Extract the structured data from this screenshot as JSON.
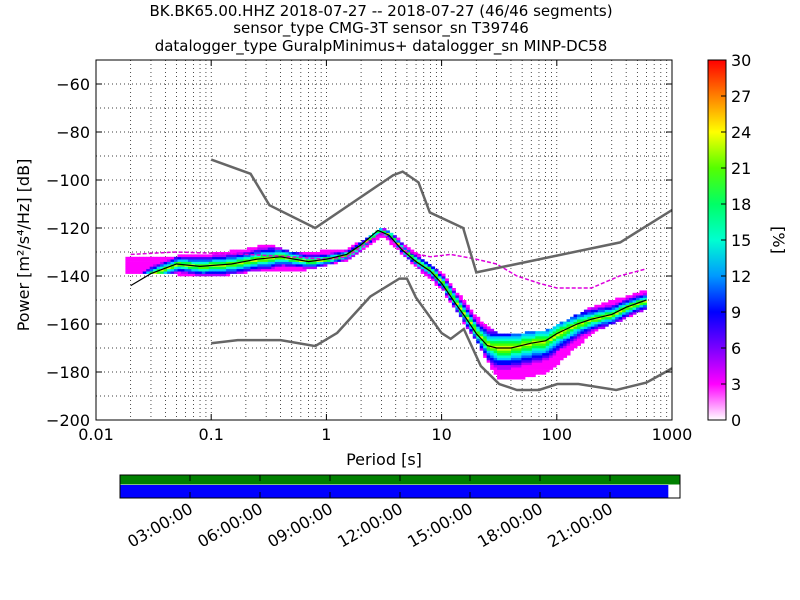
{
  "chart_data": {
    "type": "heatmap",
    "title_lines": [
      "BK.BK65.00.HHZ   2018-07-27 -- 2018-07-27  (46/46 segments)",
      "sensor_type CMG-3T sensor_sn T39746",
      "datalogger_type GuralpMinimus+ datalogger_sn MINP-DC58"
    ],
    "xlabel": "Period [s]",
    "ylabel": "Power [m²/s⁴/Hz] [dB]",
    "x_scale": "log",
    "xlim": [
      0.01,
      1000
    ],
    "ylim": [
      -200,
      -50
    ],
    "x_ticks": [
      0.01,
      0.1,
      1,
      10,
      100,
      1000
    ],
    "x_tick_labels": [
      "0.01",
      "0.1",
      "1",
      "10",
      "100",
      "1000"
    ],
    "y_ticks": [
      -200,
      -180,
      -160,
      -140,
      -120,
      -100,
      -80,
      -60
    ],
    "y_tick_labels": [
      "−200",
      "−180",
      "−160",
      "−140",
      "−120",
      "−100",
      "−80",
      "−60"
    ],
    "grid": true,
    "colorbar": {
      "label": "[%]",
      "range": [
        0,
        30
      ],
      "ticks": [
        0,
        3,
        6,
        9,
        12,
        15,
        18,
        21,
        24,
        27,
        30
      ],
      "tick_labels": [
        "0",
        "3",
        "6",
        "9",
        "12",
        "15",
        "18",
        "21",
        "24",
        "27",
        "30"
      ]
    },
    "noise_models": {
      "high": {
        "period": [
          0.1,
          0.22,
          0.32,
          0.8,
          3.8,
          4.6,
          6.3,
          7.9,
          15.4,
          20,
          354.8,
          1000
        ],
        "power": [
          -91.5,
          -97.4,
          -110.5,
          -120,
          -98,
          -96.5,
          -101,
          -113.5,
          -120,
          -138.5,
          -126,
          -112.5
        ]
      },
      "low": {
        "period": [
          0.1,
          0.17,
          0.4,
          0.8,
          1.24,
          2.4,
          4.3,
          5,
          6,
          10,
          12,
          15.6,
          21.9,
          31.6,
          45,
          70,
          101,
          154,
          328,
          600,
          1000
        ],
        "power": [
          -168,
          -166.7,
          -166.7,
          -169.2,
          -163.7,
          -148.6,
          -141.1,
          -141.1,
          -149,
          -163.8,
          -166.2,
          -162.1,
          -177.5,
          -185,
          -187.5,
          -187.5,
          -185,
          -185,
          -187.5,
          -184.4,
          -178.5
        ]
      }
    },
    "psd_mean": {
      "period": [
        0.02,
        0.03,
        0.05,
        0.08,
        0.15,
        0.25,
        0.4,
        0.7,
        1,
        1.5,
        2,
        2.8,
        3.5,
        4.5,
        6,
        8,
        10,
        13,
        16,
        20,
        25,
        30,
        40,
        60,
        80,
        100,
        150,
        200,
        300,
        400,
        600
      ],
      "power": [
        -144,
        -139,
        -135,
        -136,
        -135,
        -133,
        -132,
        -134,
        -133,
        -131,
        -127,
        -121,
        -123,
        -129,
        -134,
        -138,
        -143,
        -151,
        -157,
        -164,
        -169,
        -170,
        -170,
        -168,
        -167,
        -164,
        -160,
        -158,
        -156,
        -153,
        -150
      ]
    },
    "psd_spread": [
      {
        "period": 0.05,
        "min": -139,
        "max": -132
      },
      {
        "period": 0.1,
        "min": -140,
        "max": -131
      },
      {
        "period": 0.2,
        "min": -138,
        "max": -129
      },
      {
        "period": 0.3,
        "min": -137,
        "max": -127
      },
      {
        "period": 0.5,
        "min": -138,
        "max": -131
      },
      {
        "period": 1.5,
        "min": -133,
        "max": -129
      },
      {
        "period": 3,
        "min": -123,
        "max": -120
      },
      {
        "period": 10,
        "min": -146,
        "max": -140
      },
      {
        "period": 20,
        "min": -168,
        "max": -158
      },
      {
        "period": 30,
        "min": -183,
        "max": -165
      },
      {
        "period": 50,
        "min": -182,
        "max": -164
      },
      {
        "period": 80,
        "min": -180,
        "max": -163
      },
      {
        "period": 200,
        "min": -163,
        "max": -153
      },
      {
        "period": 600,
        "min": -153,
        "max": -146
      }
    ],
    "psd_outlier": {
      "period": [
        0.02,
        0.05,
        0.2,
        0.5,
        1,
        1.5,
        3,
        5,
        8,
        12,
        20,
        30,
        45,
        70,
        100,
        200,
        350,
        600
      ],
      "power": [
        -131,
        -130,
        -131,
        -132,
        -133,
        -132,
        -122,
        -130,
        -132,
        -131,
        -133,
        -135,
        -140,
        -143,
        -145,
        -145,
        -140,
        -137
      ]
    },
    "time_axis": {
      "tick_labels": [
        "03:00:00",
        "06:00:00",
        "09:00:00",
        "12:00:00",
        "15:00:00",
        "18:00:00",
        "21:00:00"
      ],
      "segments_total": 46,
      "segments_used": 46,
      "data_coverage_fraction": 0.98,
      "segment_coverage_fraction": 1.0
    }
  }
}
